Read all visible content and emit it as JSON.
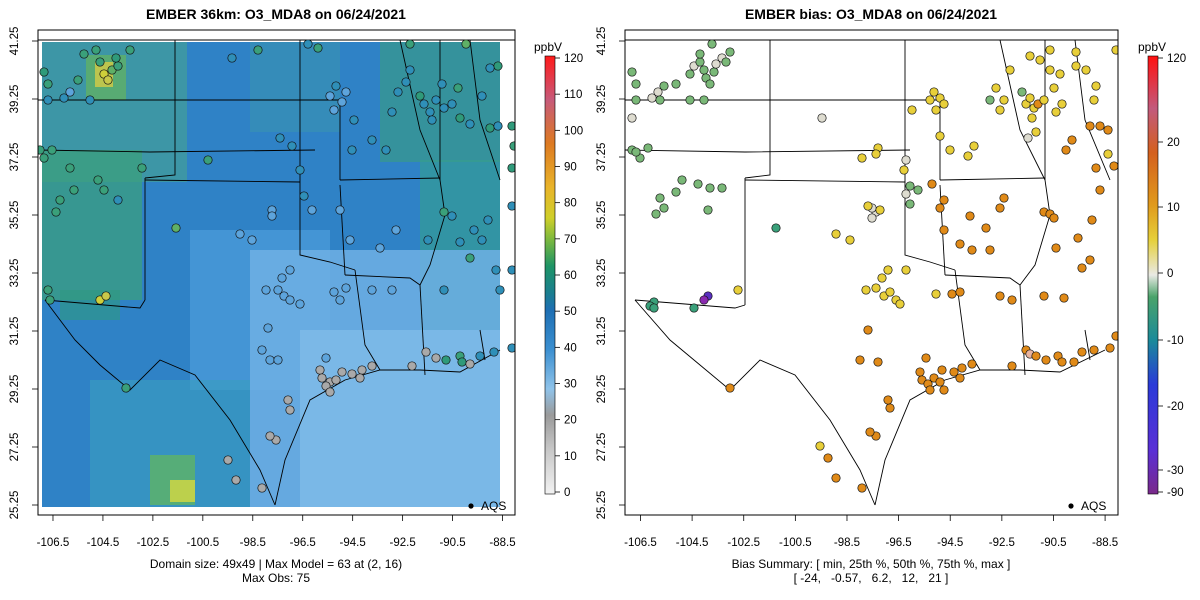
{
  "left": {
    "title": "EMBER 36km: O3_MDA8 on 06/24/2021",
    "caption1": "Domain size: 49x49 | Max Model = 63 at (2, 16)",
    "caption2": "Max Obs: 75",
    "legend_label": "AQS",
    "colorbar_unit": "ppbV",
    "colorbar_ticks": [
      "0",
      "10",
      "20",
      "30",
      "40",
      "50",
      "60",
      "70",
      "80",
      "90",
      "100",
      "110",
      "120"
    ],
    "colorbar_range": [
      0,
      120
    ]
  },
  "right": {
    "title": "EMBER bias: O3_MDA8 on 06/24/2021",
    "caption1": "Bias Summary: [ min, 25th %, 50th %, 75th %, max ]",
    "caption2": "[ -24,   -0.57,   6.2,   12,   21 ]",
    "legend_label": "AQS",
    "colorbar_unit": "ppbV",
    "colorbar_ticks": [
      "-90",
      "-30",
      "-20",
      "-10",
      "0",
      "10",
      "20",
      "120"
    ],
    "colorbar_range": [
      -90,
      120
    ]
  },
  "axes": {
    "x_ticks": [
      "-106.5",
      "-104.5",
      "-102.5",
      "-100.5",
      "-98.5",
      "-96.5",
      "-94.5",
      "-92.5",
      "-90.5",
      "-88.5"
    ],
    "x_values": [
      -106.5,
      -104.5,
      -102.5,
      -100.5,
      -98.5,
      -96.5,
      -94.5,
      -92.5,
      -90.5,
      -88.5
    ],
    "y_ticks": [
      "25.25",
      "27.25",
      "29.25",
      "31.25",
      "33.25",
      "35.25",
      "37.25",
      "39.25",
      "41.25"
    ],
    "y_values": [
      25.25,
      27.25,
      29.25,
      31.25,
      33.25,
      35.25,
      37.25,
      39.25,
      41.25
    ]
  },
  "colors": {
    "model_low": "#8fc3ea",
    "model_mid": "#2f82c6",
    "model_high": "#2ea06a",
    "obs_gray": "#a9a9a9",
    "obs_blue": "#5da4dc",
    "bias_orange": "#e08a18",
    "bias_yellow": "#e8cf3a",
    "bias_green": "#7ab878",
    "bias_pale": "#dedcd0"
  }
}
